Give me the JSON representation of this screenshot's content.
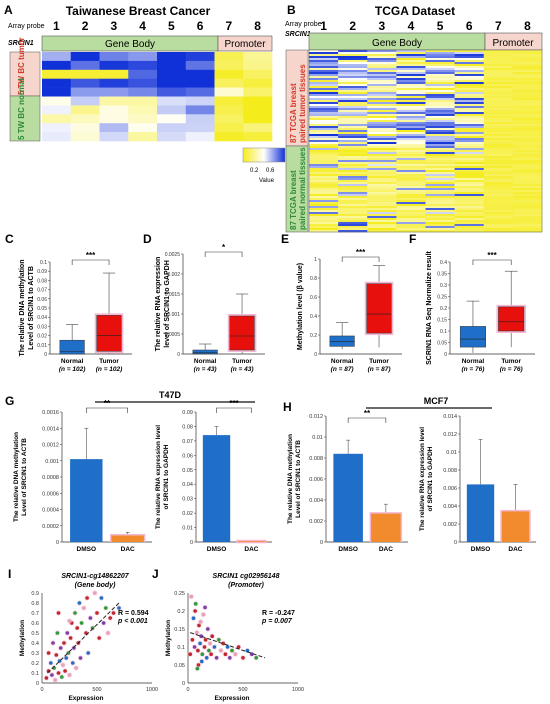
{
  "panels": {
    "A": {
      "letter": "A",
      "title": "Taiwanese Breast Cancer",
      "probe_label_1": "Array probe",
      "probe_label_2": "SRCIN1",
      "probes": [
        "1",
        "2",
        "3",
        "4",
        "5",
        "6",
        "7",
        "8"
      ],
      "gene_body": "Gene Body",
      "promoter": "Promoter",
      "row_tumor": "5 TW BC tumor",
      "row_normal": "5 TW BC normal"
    },
    "B": {
      "letter": "B",
      "title": "TCGA Dataset",
      "probe_label_1": "Array probe",
      "probe_label_2": "SRCIN1",
      "probes": [
        "1",
        "2",
        "3",
        "4",
        "5",
        "6",
        "7",
        "8"
      ],
      "gene_body": "Gene Body",
      "promoter": "Promoter",
      "row_tumor": "87 TCGA breast paired tumor tissues",
      "row_normal": "87 TCGA breast paired normal tissues"
    },
    "colorbar": {
      "ticks": [
        "0.2",
        "0.6"
      ],
      "label": "Value"
    },
    "C": {
      "letter": "C",
      "ylabel_1": "The relative DNA methylation",
      "ylabel_2": "Level of SRCIN1 to ACTB",
      "sig": "***",
      "ticks": [
        "0",
        "0.01",
        "0.02",
        "0.03",
        "0.04",
        "0.05",
        "0.06",
        "0.07",
        "0.08",
        "0.09",
        "0.1"
      ],
      "categories": [
        "Normal",
        "Tumor"
      ],
      "ns": [
        "(n = 102)",
        "(n = 102)"
      ]
    },
    "D": {
      "letter": "D",
      "ylabel_1": "The relative RNA expression",
      "ylabel_2": "level of SRCIN1 to GAPDH",
      "sig": "*",
      "ticks": [
        "0",
        "0.0005",
        "0.001",
        "0.0015",
        "0.002",
        "0.0025"
      ],
      "categories": [
        "Normal",
        "Tumor"
      ],
      "ns": [
        "(n = 43)",
        "(n = 43)"
      ]
    },
    "E": {
      "letter": "E",
      "ylabel_1": "Methylation level (β value)",
      "sig": "***",
      "ticks": [
        "0",
        "0.2",
        "0.4",
        "0.6",
        "0.8",
        "1"
      ],
      "categories": [
        "Normal",
        "Tumor"
      ],
      "ns": [
        "(n = 87)",
        "(n = 87)"
      ]
    },
    "F": {
      "letter": "F",
      "ylabel_1": "SCRIN1 RNA Seq Normalize result",
      "sig": "***",
      "ticks": [
        "0",
        "0.05",
        "0.1",
        "0.15",
        "0.2",
        "0.25",
        "0.3",
        "0.35",
        "0.4"
      ],
      "categories": [
        "Normal",
        "Tumor"
      ],
      "ns": [
        "(n = 76)",
        "(n = 76)"
      ]
    },
    "G": {
      "letter": "G",
      "cell": "T47D",
      "left": {
        "ylabel_1": "The relative DNA methylation",
        "ylabel_2": "Level of SRCIN1 to ACTB",
        "sig": "**",
        "ticks": [
          "0",
          "0.0002",
          "0.0004",
          "0.0006",
          "0.0008",
          "0.001",
          "0.0012",
          "0.0014",
          "0.0016"
        ],
        "categories": [
          "DMSO",
          "DAC"
        ]
      },
      "right": {
        "ylabel_1": "The relative RNA expression level",
        "ylabel_2": "of SRCIN1 to GAPDH",
        "sig": "***",
        "ticks": [
          "0",
          "0.01",
          "0.02",
          "0.03",
          "0.04",
          "0.05",
          "0.06",
          "0.07",
          "0.08",
          "0.09"
        ],
        "categories": [
          "DMSO",
          "DAC"
        ]
      }
    },
    "H": {
      "letter": "H",
      "cell": "MCF7",
      "left": {
        "ylabel_1": "The relative DNA methylation",
        "ylabel_2": "Level of SRCIN1 to ACTB",
        "sig": "**",
        "ticks": [
          "0",
          "0.002",
          "0.004",
          "0.006",
          "0.008",
          "0.01",
          "0.012"
        ],
        "categories": [
          "DMSO",
          "DAC"
        ]
      },
      "right": {
        "ylabel_1": "The relative RNA expression level",
        "ylabel_2": "of SRCIN1 to GAPDH",
        "ticks": [
          "0",
          "0.002",
          "0.004",
          "0.006",
          "0.008",
          "0.01",
          "0.012",
          "0.014"
        ],
        "categories": [
          "DMSO",
          "DAC"
        ]
      }
    },
    "I": {
      "letter": "I",
      "title_1": "SRCIN1-cg14862207",
      "title_2": "(Gene body)",
      "r": "R = 0.594",
      "p": "p < 0.001",
      "ylabel": "Methylation",
      "xlabel": "Expression",
      "xticks": [
        "0",
        "500",
        "1000"
      ],
      "yticks": [
        "0",
        "0.1",
        "0.2",
        "0.3",
        "0.4",
        "0.5",
        "0.6",
        "0.7",
        "0.8",
        "0.9"
      ]
    },
    "J": {
      "letter": "J",
      "title_1": "SRCIN1 cg02956148",
      "title_2": "(Promoter)",
      "r": "R = -0.247",
      "p": "p = 0.007",
      "ylabel": "Methylation",
      "xlabel": "Expression",
      "xticks": [
        "0",
        "500",
        "1000"
      ],
      "yticks": [
        "0",
        "0.05",
        "0.1",
        "0.15",
        "0.2",
        "0.25"
      ]
    }
  },
  "colors": {
    "blue": "#1f6fc8",
    "red": "#e8100c",
    "orange": "#f28a2e",
    "yellow": "#f5ec1c",
    "pink": "#f4b8d2",
    "gene_body_green": "#b9dca0",
    "promoter_pink": "#f6d5cc",
    "tumor_text": "#d63a2a",
    "normal_text": "#2e8b3a"
  },
  "chart_data": [
    {
      "panel": "C",
      "type": "box",
      "categories": [
        "Normal",
        "Tumor"
      ],
      "values": [
        {
          "q1": 0,
          "median": 0.003,
          "q3": 0.015,
          "max": 0.032
        },
        {
          "q1": 0.003,
          "median": 0.02,
          "q3": 0.042,
          "max": 0.088
        }
      ],
      "ylim": [
        0,
        0.1
      ]
    },
    {
      "panel": "D",
      "type": "box",
      "categories": [
        "Normal",
        "Tumor"
      ],
      "values": [
        {
          "q1": 0,
          "median": 3e-05,
          "q3": 0.0001,
          "max": 0.00025
        },
        {
          "q1": 0.0001,
          "median": 0.00045,
          "q3": 0.00095,
          "max": 0.0015
        }
      ],
      "ylim": [
        0,
        0.0025
      ]
    },
    {
      "panel": "E",
      "type": "box",
      "categories": [
        "Normal",
        "Tumor"
      ],
      "values": [
        {
          "min": 0.05,
          "q1": 0.08,
          "median": 0.13,
          "q3": 0.19,
          "max": 0.33
        },
        {
          "min": 0.07,
          "q1": 0.22,
          "median": 0.42,
          "q3": 0.74,
          "max": 0.93
        }
      ],
      "ylim": [
        0,
        1
      ]
    },
    {
      "panel": "F",
      "type": "box",
      "categories": [
        "Normal",
        "Tumor"
      ],
      "values": [
        {
          "min": 0.005,
          "q1": 0.03,
          "median": 0.065,
          "q3": 0.12,
          "max": 0.23
        },
        {
          "min": 0.03,
          "q1": 0.1,
          "median": 0.14,
          "q3": 0.205,
          "max": 0.36
        }
      ],
      "ylim": [
        0,
        0.4
      ]
    },
    {
      "panel": "G-left",
      "type": "bar",
      "categories": [
        "DMSO",
        "DAC"
      ],
      "values": [
        0.00102,
        8e-05
      ],
      "errors": [
        0.00038,
        4e-05
      ],
      "ylim": [
        0,
        0.0016
      ]
    },
    {
      "panel": "G-right",
      "type": "bar",
      "categories": [
        "DMSO",
        "DAC"
      ],
      "values": [
        0.074,
        0.0005
      ],
      "errors": [
        0.006,
        0.0002
      ],
      "ylim": [
        0,
        0.09
      ]
    },
    {
      "panel": "H-left",
      "type": "bar",
      "categories": [
        "DMSO",
        "DAC"
      ],
      "values": [
        0.0084,
        0.0027
      ],
      "errors": [
        0.0013,
        0.0009
      ],
      "ylim": [
        0,
        0.012
      ]
    },
    {
      "panel": "H-right",
      "type": "bar",
      "categories": [
        "DMSO",
        "DAC"
      ],
      "values": [
        0.0064,
        0.0034
      ],
      "errors": [
        0.005,
        0.003
      ],
      "ylim": [
        0,
        0.014
      ]
    },
    {
      "panel": "I",
      "type": "scatter",
      "xlim": [
        0,
        1000
      ],
      "ylim": [
        0,
        0.9
      ],
      "points": [
        [
          40,
          0.05
        ],
        [
          60,
          0.12
        ],
        [
          80,
          0.2
        ],
        [
          90,
          0.08
        ],
        [
          110,
          0.15
        ],
        [
          120,
          0.03
        ],
        [
          130,
          0.28
        ],
        [
          150,
          0.1
        ],
        [
          160,
          0.22
        ],
        [
          170,
          0.35
        ],
        [
          180,
          0.06
        ],
        [
          190,
          0.18
        ],
        [
          200,
          0.4
        ],
        [
          210,
          0.12
        ],
        [
          220,
          0.25
        ],
        [
          230,
          0.5
        ],
        [
          240,
          0.3
        ],
        [
          250,
          0.08
        ],
        [
          260,
          0.45
        ],
        [
          270,
          0.6
        ],
        [
          280,
          0.2
        ],
        [
          290,
          0.35
        ],
        [
          300,
          0.7
        ],
        [
          310,
          0.15
        ],
        [
          320,
          0.55
        ],
        [
          330,
          0.4
        ],
        [
          340,
          0.8
        ],
        [
          350,
          0.25
        ],
        [
          360,
          0.6
        ],
        [
          380,
          0.75
        ],
        [
          400,
          0.5
        ],
        [
          410,
          0.85
        ],
        [
          420,
          0.3
        ],
        [
          440,
          0.65
        ],
        [
          460,
          0.55
        ],
        [
          480,
          0.9
        ],
        [
          500,
          0.7
        ],
        [
          520,
          0.45
        ],
        [
          540,
          0.85
        ],
        [
          560,
          0.6
        ],
        [
          580,
          0.75
        ],
        [
          600,
          0.5
        ],
        [
          620,
          0.65
        ],
        [
          650,
          0.7
        ],
        [
          700,
          0.75
        ],
        [
          100,
          0.4
        ],
        [
          140,
          0.5
        ],
        [
          250,
          0.62
        ],
        [
          150,
          0.7
        ],
        [
          60,
          0.3
        ]
      ]
    },
    {
      "panel": "J",
      "type": "scatter",
      "xlim": [
        0,
        1000
      ],
      "ylim": [
        0,
        0.25
      ],
      "points": [
        [
          20,
          0.08
        ],
        [
          40,
          0.12
        ],
        [
          50,
          0.18
        ],
        [
          60,
          0.1
        ],
        [
          70,
          0.22
        ],
        [
          80,
          0.14
        ],
        [
          90,
          0.09
        ],
        [
          100,
          0.16
        ],
        [
          110,
          0.11
        ],
        [
          120,
          0.13
        ],
        [
          130,
          0.08
        ],
        [
          140,
          0.19
        ],
        [
          150,
          0.1
        ],
        [
          160,
          0.12
        ],
        [
          170,
          0.07
        ],
        [
          180,
          0.15
        ],
        [
          190,
          0.09
        ],
        [
          200,
          0.11
        ],
        [
          210,
          0.08
        ],
        [
          220,
          0.13
        ],
        [
          240,
          0.1
        ],
        [
          260,
          0.07
        ],
        [
          280,
          0.12
        ],
        [
          300,
          0.09
        ],
        [
          320,
          0.11
        ],
        [
          340,
          0.08
        ],
        [
          360,
          0.1
        ],
        [
          380,
          0.07
        ],
        [
          400,
          0.09
        ],
        [
          430,
          0.08
        ],
        [
          460,
          0.1
        ],
        [
          500,
          0.07
        ],
        [
          540,
          0.09
        ],
        [
          580,
          0.08
        ],
        [
          620,
          0.07
        ],
        [
          30,
          0.24
        ],
        [
          65,
          0.2
        ],
        [
          95,
          0.05
        ],
        [
          125,
          0.06
        ],
        [
          155,
          0.21
        ],
        [
          85,
          0.04
        ],
        [
          115,
          0.17
        ]
      ]
    }
  ]
}
